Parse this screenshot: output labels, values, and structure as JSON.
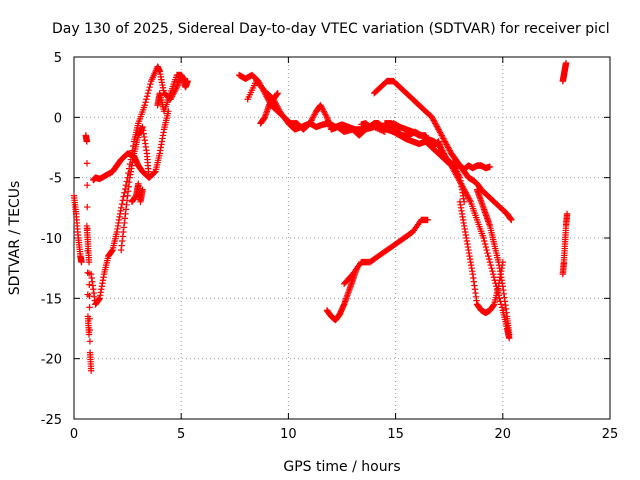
{
  "chart_data": {
    "type": "scatter",
    "title": "Day 130 of 2025, Sidereal Day-to-day VTEC variation (SDTVAR) for receiver picl",
    "xlabel": "GPS time / hours",
    "ylabel": "SDTVAR / TECUs",
    "xlim": [
      0,
      25
    ],
    "ylim": [
      -25,
      5
    ],
    "xticks": [
      0,
      5,
      10,
      15,
      20,
      25
    ],
    "yticks": [
      -25,
      -20,
      -15,
      -10,
      -5,
      0,
      5
    ],
    "grid": true,
    "marker": "+",
    "color": "#ff0000",
    "segments": [
      {
        "name": "s1",
        "x": [
          0.0,
          0.1,
          0.2,
          0.3,
          0.35
        ],
        "y": [
          -6.5,
          -8.0,
          -10.0,
          -11.5,
          -12.0
        ]
      },
      {
        "name": "s2",
        "x": [
          0.55,
          0.6,
          0.65,
          0.7
        ],
        "y": [
          -1.5,
          -2.0,
          -16.5,
          -18.0
        ]
      },
      {
        "name": "s3",
        "x": [
          0.6,
          0.65,
          0.7,
          0.75,
          0.8
        ],
        "y": [
          -9.0,
          -10.5,
          -12.0,
          -19.5,
          -21.0
        ]
      },
      {
        "name": "s4",
        "x": [
          0.8,
          1.0,
          1.2,
          1.4,
          1.6,
          1.8,
          2.0,
          2.2,
          2.5,
          2.8,
          3.0,
          3.3,
          3.6,
          3.9,
          4.0,
          4.2,
          4.5,
          4.8,
          5.0,
          5.2
        ],
        "y": [
          -13.0,
          -15.5,
          -15.0,
          -13.0,
          -11.5,
          -11.0,
          -9.5,
          -7.5,
          -5.0,
          -2.0,
          -0.5,
          1.0,
          3.0,
          4.2,
          3.8,
          2.0,
          1.5,
          2.5,
          3.5,
          3.0
        ]
      },
      {
        "name": "s5",
        "x": [
          0.9,
          1.0,
          1.2,
          1.5,
          1.8,
          2.0,
          2.2,
          2.5,
          2.8,
          3.0,
          3.2,
          3.5,
          3.8,
          4.0,
          4.2,
          4.4
        ],
        "y": [
          -5.2,
          -5.0,
          -5.1,
          -4.8,
          -4.5,
          -4.0,
          -3.5,
          -3.0,
          -3.2,
          -4.0,
          -4.5,
          -5.0,
          -4.5,
          -3.0,
          -1.0,
          0.5
        ]
      },
      {
        "name": "s6",
        "x": [
          2.2,
          2.4,
          2.6,
          2.8,
          3.0,
          3.2,
          3.4,
          3.5
        ],
        "y": [
          -11.0,
          -8.0,
          -5.0,
          -3.0,
          -1.5,
          -0.8,
          -3.0,
          -5.0
        ]
      },
      {
        "name": "s7",
        "x": [
          2.7,
          2.9,
          3.0,
          3.1,
          3.2
        ],
        "y": [
          -7.0,
          -6.5,
          -5.5,
          -7.0,
          -6.0
        ]
      },
      {
        "name": "s8",
        "x": [
          3.9,
          4.0,
          4.2,
          4.5,
          4.8,
          5.0,
          5.2,
          5.3
        ],
        "y": [
          1.0,
          2.0,
          0.5,
          2.0,
          3.5,
          3.5,
          2.5,
          3.0
        ]
      },
      {
        "name": "s9",
        "x": [
          7.7,
          8.0,
          8.3,
          8.6,
          8.9,
          9.2,
          9.5,
          9.8,
          10.1,
          10.4,
          10.7,
          11.0,
          11.3,
          11.6,
          11.9,
          12.2,
          12.5,
          12.8,
          13.1,
          13.4,
          13.7,
          14.0,
          14.3,
          14.6,
          14.9,
          15.2,
          15.5,
          15.8,
          16.1,
          16.4,
          16.7,
          17.0,
          17.2,
          17.4,
          17.6,
          17.8,
          18.0,
          18.2,
          18.4,
          18.6,
          18.8,
          19.0,
          19.2,
          19.4
        ],
        "y": [
          3.5,
          3.2,
          3.5,
          3.0,
          2.0,
          1.0,
          0.5,
          0.0,
          -0.5,
          -0.5,
          -1.0,
          -0.5,
          -0.8,
          -0.6,
          -0.5,
          -0.8,
          -0.6,
          -0.8,
          -1.0,
          -1.0,
          -0.8,
          -0.6,
          -0.8,
          -1.0,
          -1.2,
          -1.5,
          -1.8,
          -2.0,
          -2.2,
          -2.0,
          -2.5,
          -2.0,
          -3.0,
          -3.5,
          -3.8,
          -4.0,
          -4.0,
          -4.3,
          -4.0,
          -4.2,
          -4.0,
          -4.0,
          -4.2,
          -4.1
        ]
      },
      {
        "name": "s10",
        "x": [
          8.1,
          8.5,
          9.0,
          9.3,
          9.6,
          10.0,
          10.3,
          10.6,
          11.0,
          11.3,
          11.5,
          11.8,
          12.0,
          12.3,
          12.6,
          13.0,
          13.3,
          13.6,
          14.0,
          14.5
        ],
        "y": [
          1.5,
          3.0,
          2.0,
          1.5,
          0.5,
          -0.5,
          -1.0,
          -0.8,
          -0.5,
          0.5,
          1.0,
          0.0,
          -1.0,
          -0.8,
          -1.2,
          -1.0,
          -1.5,
          -1.0,
          -0.8,
          -1.2
        ]
      },
      {
        "name": "s11",
        "x": [
          8.7,
          8.9,
          9.1,
          9.3,
          9.5
        ],
        "y": [
          -0.5,
          0.0,
          1.0,
          1.5,
          2.0
        ]
      },
      {
        "name": "s12",
        "x": [
          13.4,
          13.6,
          13.8,
          14.0,
          14.2,
          14.4,
          14.6,
          14.9,
          15.2,
          15.5,
          15.8,
          16.1,
          16.4,
          16.7,
          17.0,
          17.3,
          17.6,
          17.9,
          18.2,
          18.5,
          18.8,
          19.1,
          19.4,
          19.7,
          20.0,
          20.2,
          20.3
        ],
        "y": [
          -0.6,
          -0.5,
          -0.8,
          -0.5,
          -0.5,
          -0.8,
          -1.0,
          -0.5,
          -0.8,
          -1.0,
          -1.2,
          -1.5,
          -1.5,
          -2.5,
          -3.0,
          -3.5,
          -4.0,
          -5.0,
          -6.0,
          -7.0,
          -8.5,
          -10.0,
          -12.0,
          -14.0,
          -16.0,
          -17.5,
          -18.3
        ]
      },
      {
        "name": "s13",
        "x": [
          14.5,
          14.8,
          15.0,
          15.3,
          15.6,
          15.9,
          16.2,
          16.5,
          16.8,
          17.1,
          17.4,
          17.7,
          18.0,
          18.2
        ],
        "y": [
          -0.5,
          -0.5,
          -1.0,
          -1.5,
          -1.5,
          -1.2,
          -1.5,
          -1.8,
          -2.0,
          -2.5,
          -3.5,
          -4.0,
          -5.0,
          -7.0
        ]
      },
      {
        "name": "s14",
        "x": [
          14.0,
          14.3,
          14.6,
          14.9,
          15.2,
          15.5,
          15.8,
          16.1,
          16.4,
          16.7,
          17.0,
          17.3,
          17.6,
          17.8,
          18.0,
          18.2,
          18.4,
          18.6,
          18.8,
          19.0,
          19.3,
          19.6,
          19.9,
          20.2,
          20.4
        ],
        "y": [
          2.0,
          2.5,
          3.0,
          3.0,
          2.5,
          2.0,
          1.5,
          1.0,
          0.5,
          0.0,
          -1.0,
          -2.0,
          -3.0,
          -3.5,
          -4.0,
          -4.5,
          -5.0,
          -5.2,
          -5.5,
          -6.0,
          -6.5,
          -7.0,
          -7.5,
          -8.0,
          -8.5
        ]
      },
      {
        "name": "s15",
        "x": [
          18.0,
          18.2,
          18.4,
          18.6,
          18.8,
          19.0,
          19.2,
          19.4,
          19.6,
          19.8,
          20.0
        ],
        "y": [
          -7.0,
          -9.0,
          -11.0,
          -13.0,
          -15.5,
          -16.0,
          -16.2,
          -16.0,
          -15.5,
          -14.0,
          -12.0
        ]
      },
      {
        "name": "s16",
        "x": [
          18.8,
          19.0,
          19.2,
          19.4,
          19.6,
          19.8,
          20.0,
          20.2,
          20.3
        ],
        "y": [
          -6.0,
          -7.0,
          -8.0,
          -9.0,
          -10.5,
          -12.0,
          -14.0,
          -16.5,
          -18.0
        ]
      },
      {
        "name": "s17",
        "x": [
          11.8,
          12.0,
          12.2,
          12.4,
          12.6,
          12.8,
          13.0,
          13.2
        ],
        "y": [
          -16.0,
          -16.5,
          -16.8,
          -16.3,
          -15.5,
          -14.5,
          -13.5,
          -12.5
        ]
      },
      {
        "name": "s18",
        "x": [
          12.6,
          13.0,
          13.4,
          13.8,
          14.2,
          14.6,
          15.0,
          15.4,
          15.8,
          16.2,
          16.5
        ],
        "y": [
          -13.8,
          -13.0,
          -12.0,
          -12.0,
          -11.5,
          -11.0,
          -10.5,
          -10.0,
          -9.5,
          -8.5,
          -8.5
        ]
      },
      {
        "name": "s19",
        "x": [
          22.8,
          22.85,
          22.9,
          22.95,
          23.0
        ],
        "y": [
          -13.0,
          -12.0,
          -10.5,
          -9.0,
          -8.0
        ]
      },
      {
        "name": "s20",
        "x": [
          22.8,
          22.85,
          22.9,
          22.95
        ],
        "y": [
          3.0,
          3.5,
          4.0,
          4.5
        ]
      }
    ]
  }
}
